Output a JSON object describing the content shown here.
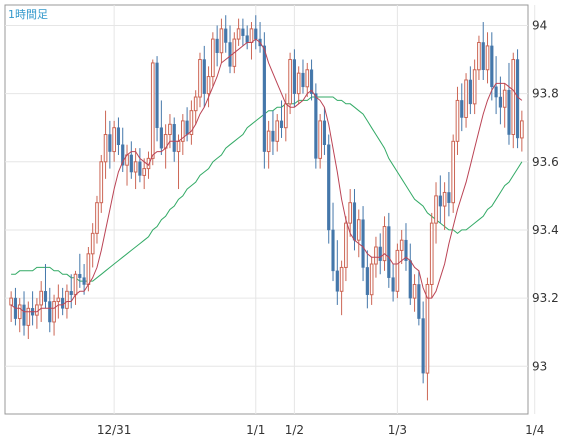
{
  "chart_data": {
    "type": "candlestick",
    "title": "1時間足",
    "y_ticks": [
      93,
      93.2,
      93.4,
      93.6,
      93.8,
      94
    ],
    "y_tick_labels": [
      "93",
      "93.2",
      "93.4",
      "93.6",
      "93.8",
      "94"
    ],
    "ylim": [
      92.86,
      94.06
    ],
    "x_tick_labels": [
      {
        "label": "12/31",
        "index": 24
      },
      {
        "label": "1/1",
        "index": 57
      },
      {
        "label": "1/2",
        "index": 66
      },
      {
        "label": "1/3",
        "index": 90
      },
      {
        "label": "1/4",
        "index": 122
      }
    ],
    "colors": {
      "up": "#cc6655",
      "down": "#4477aa",
      "ma_short": "#bb4455",
      "ma_long": "#33aa66",
      "grid": "#e6e6e6",
      "label": "#3399cc"
    },
    "grid": true,
    "candles": [
      {
        "o": 93.18,
        "h": 93.22,
        "l": 93.13,
        "c": 93.2
      },
      {
        "o": 93.2,
        "h": 93.23,
        "l": 93.12,
        "c": 93.14
      },
      {
        "o": 93.14,
        "h": 93.2,
        "l": 93.1,
        "c": 93.18
      },
      {
        "o": 93.18,
        "h": 93.22,
        "l": 93.09,
        "c": 93.12
      },
      {
        "o": 93.12,
        "h": 93.19,
        "l": 93.08,
        "c": 93.17
      },
      {
        "o": 93.17,
        "h": 93.22,
        "l": 93.12,
        "c": 93.15
      },
      {
        "o": 93.15,
        "h": 93.2,
        "l": 93.11,
        "c": 93.18
      },
      {
        "o": 93.18,
        "h": 93.25,
        "l": 93.13,
        "c": 93.22
      },
      {
        "o": 93.22,
        "h": 93.3,
        "l": 93.17,
        "c": 93.19
      },
      {
        "o": 93.19,
        "h": 93.23,
        "l": 93.1,
        "c": 93.13
      },
      {
        "o": 93.13,
        "h": 93.21,
        "l": 93.09,
        "c": 93.19
      },
      {
        "o": 93.19,
        "h": 93.24,
        "l": 93.14,
        "c": 93.2
      },
      {
        "o": 93.2,
        "h": 93.23,
        "l": 93.15,
        "c": 93.17
      },
      {
        "o": 93.17,
        "h": 93.24,
        "l": 93.14,
        "c": 93.22
      },
      {
        "o": 93.22,
        "h": 93.27,
        "l": 93.17,
        "c": 93.21
      },
      {
        "o": 93.21,
        "h": 93.28,
        "l": 93.18,
        "c": 93.27
      },
      {
        "o": 93.27,
        "h": 93.33,
        "l": 93.23,
        "c": 93.26
      },
      {
        "o": 93.26,
        "h": 93.3,
        "l": 93.21,
        "c": 93.24
      },
      {
        "o": 93.24,
        "h": 93.35,
        "l": 93.22,
        "c": 93.33
      },
      {
        "o": 93.33,
        "h": 93.42,
        "l": 93.29,
        "c": 93.39
      },
      {
        "o": 93.39,
        "h": 93.5,
        "l": 93.36,
        "c": 93.48
      },
      {
        "o": 93.48,
        "h": 93.62,
        "l": 93.45,
        "c": 93.6
      },
      {
        "o": 93.6,
        "h": 93.75,
        "l": 93.55,
        "c": 93.68
      },
      {
        "o": 93.68,
        "h": 93.72,
        "l": 93.58,
        "c": 93.63
      },
      {
        "o": 93.63,
        "h": 93.72,
        "l": 93.6,
        "c": 93.7
      },
      {
        "o": 93.7,
        "h": 93.73,
        "l": 93.62,
        "c": 93.65
      },
      {
        "o": 93.65,
        "h": 93.7,
        "l": 93.57,
        "c": 93.59
      },
      {
        "o": 93.59,
        "h": 93.65,
        "l": 93.53,
        "c": 93.62
      },
      {
        "o": 93.62,
        "h": 93.66,
        "l": 93.55,
        "c": 93.57
      },
      {
        "o": 93.57,
        "h": 93.64,
        "l": 93.52,
        "c": 93.6
      },
      {
        "o": 93.6,
        "h": 93.64,
        "l": 93.54,
        "c": 93.56
      },
      {
        "o": 93.56,
        "h": 93.61,
        "l": 93.52,
        "c": 93.58
      },
      {
        "o": 93.58,
        "h": 93.63,
        "l": 93.55,
        "c": 93.61
      },
      {
        "o": 93.61,
        "h": 93.9,
        "l": 93.59,
        "c": 93.89
      },
      {
        "o": 93.89,
        "h": 93.91,
        "l": 93.66,
        "c": 93.7
      },
      {
        "o": 93.7,
        "h": 93.78,
        "l": 93.62,
        "c": 93.64
      },
      {
        "o": 93.64,
        "h": 93.71,
        "l": 93.58,
        "c": 93.68
      },
      {
        "o": 93.68,
        "h": 93.74,
        "l": 93.64,
        "c": 93.71
      },
      {
        "o": 93.71,
        "h": 93.73,
        "l": 93.6,
        "c": 93.63
      },
      {
        "o": 93.63,
        "h": 93.68,
        "l": 93.52,
        "c": 93.66
      },
      {
        "o": 93.66,
        "h": 93.74,
        "l": 93.62,
        "c": 93.72
      },
      {
        "o": 93.72,
        "h": 93.76,
        "l": 93.66,
        "c": 93.68
      },
      {
        "o": 93.68,
        "h": 93.78,
        "l": 93.65,
        "c": 93.75
      },
      {
        "o": 93.75,
        "h": 93.81,
        "l": 93.71,
        "c": 93.79
      },
      {
        "o": 93.79,
        "h": 93.92,
        "l": 93.76,
        "c": 93.9
      },
      {
        "o": 93.9,
        "h": 93.94,
        "l": 93.76,
        "c": 93.8
      },
      {
        "o": 93.8,
        "h": 93.88,
        "l": 93.76,
        "c": 93.85
      },
      {
        "o": 93.85,
        "h": 93.98,
        "l": 93.82,
        "c": 93.96
      },
      {
        "o": 93.96,
        "h": 94.0,
        "l": 93.88,
        "c": 93.92
      },
      {
        "o": 93.92,
        "h": 94.02,
        "l": 93.89,
        "c": 93.99
      },
      {
        "o": 93.99,
        "h": 94.03,
        "l": 93.92,
        "c": 93.95
      },
      {
        "o": 93.95,
        "h": 94.0,
        "l": 93.86,
        "c": 93.88
      },
      {
        "o": 93.88,
        "h": 93.98,
        "l": 93.86,
        "c": 93.96
      },
      {
        "o": 93.96,
        "h": 94.02,
        "l": 93.94,
        "c": 93.99
      },
      {
        "o": 93.99,
        "h": 94.02,
        "l": 93.94,
        "c": 93.97
      },
      {
        "o": 93.97,
        "h": 94.0,
        "l": 93.93,
        "c": 93.95
      },
      {
        "o": 93.95,
        "h": 94.01,
        "l": 93.9,
        "c": 93.99
      },
      {
        "o": 93.99,
        "h": 94.03,
        "l": 93.93,
        "c": 93.96
      },
      {
        "o": 93.96,
        "h": 94.01,
        "l": 93.92,
        "c": 93.94
      },
      {
        "o": 93.94,
        "h": 93.98,
        "l": 93.58,
        "c": 93.63
      },
      {
        "o": 93.63,
        "h": 93.72,
        "l": 93.58,
        "c": 93.69
      },
      {
        "o": 93.69,
        "h": 93.75,
        "l": 93.62,
        "c": 93.66
      },
      {
        "o": 93.66,
        "h": 93.74,
        "l": 93.63,
        "c": 93.72
      },
      {
        "o": 93.72,
        "h": 93.78,
        "l": 93.67,
        "c": 93.7
      },
      {
        "o": 93.7,
        "h": 93.8,
        "l": 93.66,
        "c": 93.77
      },
      {
        "o": 93.77,
        "h": 93.92,
        "l": 93.74,
        "c": 93.9
      },
      {
        "o": 93.9,
        "h": 93.93,
        "l": 93.76,
        "c": 93.8
      },
      {
        "o": 93.8,
        "h": 93.88,
        "l": 93.77,
        "c": 93.86
      },
      {
        "o": 93.86,
        "h": 93.9,
        "l": 93.8,
        "c": 93.82
      },
      {
        "o": 93.82,
        "h": 93.89,
        "l": 93.79,
        "c": 93.87
      },
      {
        "o": 93.87,
        "h": 93.9,
        "l": 93.78,
        "c": 93.8
      },
      {
        "o": 93.8,
        "h": 93.83,
        "l": 93.58,
        "c": 93.61
      },
      {
        "o": 93.61,
        "h": 93.74,
        "l": 93.58,
        "c": 93.72
      },
      {
        "o": 93.72,
        "h": 93.76,
        "l": 93.62,
        "c": 93.65
      },
      {
        "o": 93.65,
        "h": 93.68,
        "l": 93.36,
        "c": 93.4
      },
      {
        "o": 93.4,
        "h": 93.48,
        "l": 93.25,
        "c": 93.28
      },
      {
        "o": 93.28,
        "h": 93.37,
        "l": 93.18,
        "c": 93.22
      },
      {
        "o": 93.22,
        "h": 93.31,
        "l": 93.15,
        "c": 93.29
      },
      {
        "o": 93.29,
        "h": 93.44,
        "l": 93.25,
        "c": 93.42
      },
      {
        "o": 93.42,
        "h": 93.52,
        "l": 93.38,
        "c": 93.48
      },
      {
        "o": 93.48,
        "h": 93.52,
        "l": 93.34,
        "c": 93.37
      },
      {
        "o": 93.37,
        "h": 93.46,
        "l": 93.32,
        "c": 93.43
      },
      {
        "o": 93.43,
        "h": 93.47,
        "l": 93.25,
        "c": 93.29
      },
      {
        "o": 93.29,
        "h": 93.34,
        "l": 93.17,
        "c": 93.21
      },
      {
        "o": 93.21,
        "h": 93.32,
        "l": 93.18,
        "c": 93.3
      },
      {
        "o": 93.3,
        "h": 93.38,
        "l": 93.26,
        "c": 93.35
      },
      {
        "o": 93.35,
        "h": 93.39,
        "l": 93.27,
        "c": 93.31
      },
      {
        "o": 93.31,
        "h": 93.44,
        "l": 93.28,
        "c": 93.41
      },
      {
        "o": 93.41,
        "h": 93.45,
        "l": 93.23,
        "c": 93.26
      },
      {
        "o": 93.26,
        "h": 93.3,
        "l": 93.19,
        "c": 93.22
      },
      {
        "o": 93.22,
        "h": 93.36,
        "l": 93.2,
        "c": 93.34
      },
      {
        "o": 93.34,
        "h": 93.4,
        "l": 93.3,
        "c": 93.37
      },
      {
        "o": 93.37,
        "h": 93.42,
        "l": 93.28,
        "c": 93.31
      },
      {
        "o": 93.31,
        "h": 93.36,
        "l": 93.18,
        "c": 93.2
      },
      {
        "o": 93.2,
        "h": 93.27,
        "l": 93.16,
        "c": 93.24
      },
      {
        "o": 93.24,
        "h": 93.28,
        "l": 93.12,
        "c": 93.14
      },
      {
        "o": 93.14,
        "h": 93.19,
        "l": 92.95,
        "c": 92.98
      },
      {
        "o": 92.98,
        "h": 93.26,
        "l": 92.9,
        "c": 93.24
      },
      {
        "o": 93.24,
        "h": 93.45,
        "l": 93.2,
        "c": 93.42
      },
      {
        "o": 93.42,
        "h": 93.54,
        "l": 93.36,
        "c": 93.5
      },
      {
        "o": 93.5,
        "h": 93.56,
        "l": 93.42,
        "c": 93.47
      },
      {
        "o": 93.47,
        "h": 93.54,
        "l": 93.4,
        "c": 93.51
      },
      {
        "o": 93.51,
        "h": 93.57,
        "l": 93.44,
        "c": 93.48
      },
      {
        "o": 93.48,
        "h": 93.68,
        "l": 93.45,
        "c": 93.66
      },
      {
        "o": 93.66,
        "h": 93.82,
        "l": 93.62,
        "c": 93.78
      },
      {
        "o": 93.78,
        "h": 93.83,
        "l": 93.69,
        "c": 93.73
      },
      {
        "o": 93.73,
        "h": 93.86,
        "l": 93.7,
        "c": 93.84
      },
      {
        "o": 93.84,
        "h": 93.88,
        "l": 93.74,
        "c": 93.77
      },
      {
        "o": 93.77,
        "h": 93.9,
        "l": 93.74,
        "c": 93.87
      },
      {
        "o": 93.87,
        "h": 93.97,
        "l": 93.84,
        "c": 93.95
      },
      {
        "o": 93.95,
        "h": 94.01,
        "l": 93.84,
        "c": 93.87
      },
      {
        "o": 93.87,
        "h": 93.98,
        "l": 93.83,
        "c": 93.94
      },
      {
        "o": 93.94,
        "h": 93.98,
        "l": 93.78,
        "c": 93.82
      },
      {
        "o": 93.82,
        "h": 93.91,
        "l": 93.74,
        "c": 93.79
      },
      {
        "o": 93.79,
        "h": 93.85,
        "l": 93.71,
        "c": 93.76
      },
      {
        "o": 93.76,
        "h": 93.83,
        "l": 93.7,
        "c": 93.81
      },
      {
        "o": 93.81,
        "h": 93.89,
        "l": 93.65,
        "c": 93.68
      },
      {
        "o": 93.68,
        "h": 93.92,
        "l": 93.64,
        "c": 93.9
      },
      {
        "o": 93.9,
        "h": 93.93,
        "l": 93.64,
        "c": 93.67
      },
      {
        "o": 93.67,
        "h": 93.75,
        "l": 93.63,
        "c": 93.72
      }
    ],
    "ma_short": [
      93.18,
      93.17,
      93.17,
      93.16,
      93.16,
      93.16,
      93.16,
      93.17,
      93.17,
      93.17,
      93.17,
      93.18,
      93.18,
      93.19,
      93.19,
      93.21,
      93.22,
      93.22,
      93.24,
      93.26,
      93.29,
      93.34,
      93.4,
      93.46,
      93.52,
      93.57,
      93.6,
      93.62,
      93.63,
      93.63,
      93.61,
      93.6,
      93.59,
      93.62,
      93.63,
      93.63,
      93.64,
      93.66,
      93.66,
      93.66,
      93.67,
      93.68,
      93.69,
      93.71,
      93.74,
      93.76,
      93.79,
      93.82,
      93.85,
      93.89,
      93.9,
      93.91,
      93.92,
      93.93,
      93.94,
      93.95,
      93.95,
      93.96,
      93.95,
      93.93,
      93.89,
      93.86,
      93.83,
      93.8,
      93.77,
      93.76,
      93.76,
      93.77,
      93.78,
      93.8,
      93.81,
      93.79,
      93.78,
      93.76,
      93.71,
      93.64,
      93.57,
      93.49,
      93.43,
      93.39,
      93.37,
      93.36,
      93.35,
      93.33,
      93.32,
      93.32,
      93.32,
      93.33,
      93.32,
      93.3,
      93.3,
      93.31,
      93.32,
      93.31,
      93.29,
      93.28,
      93.23,
      93.2,
      93.2,
      93.22,
      93.26,
      93.3,
      93.36,
      93.41,
      93.46,
      93.5,
      93.54,
      93.59,
      93.64,
      93.69,
      93.74,
      93.78,
      93.81,
      93.83,
      93.83,
      93.83,
      93.82,
      93.81,
      93.79,
      93.78
    ],
    "ma_long": [
      93.27,
      93.27,
      93.28,
      93.28,
      93.28,
      93.28,
      93.29,
      93.29,
      93.29,
      93.29,
      93.28,
      93.28,
      93.27,
      93.27,
      93.26,
      93.26,
      93.25,
      93.25,
      93.25,
      93.25,
      93.26,
      93.27,
      93.28,
      93.29,
      93.3,
      93.31,
      93.32,
      93.33,
      93.34,
      93.35,
      93.36,
      93.37,
      93.38,
      93.4,
      93.41,
      93.43,
      93.44,
      93.46,
      93.47,
      93.49,
      93.5,
      93.52,
      93.53,
      93.54,
      93.56,
      93.57,
      93.58,
      93.6,
      93.61,
      93.62,
      93.64,
      93.65,
      93.66,
      93.67,
      93.68,
      93.7,
      93.71,
      93.72,
      93.73,
      93.74,
      93.75,
      93.75,
      93.76,
      93.76,
      93.77,
      93.77,
      93.77,
      93.78,
      93.78,
      93.78,
      93.79,
      93.79,
      93.79,
      93.79,
      93.79,
      93.79,
      93.78,
      93.78,
      93.77,
      93.77,
      93.76,
      93.75,
      93.74,
      93.72,
      93.7,
      93.68,
      93.66,
      93.64,
      93.61,
      93.59,
      93.57,
      93.55,
      93.53,
      93.51,
      93.49,
      93.48,
      93.47,
      93.45,
      93.44,
      93.43,
      93.42,
      93.41,
      93.4,
      93.4,
      93.39,
      93.4,
      93.4,
      93.41,
      93.42,
      93.43,
      93.44,
      93.46,
      93.47,
      93.49,
      93.51,
      93.53,
      93.54,
      93.56,
      93.58,
      93.6
    ]
  }
}
